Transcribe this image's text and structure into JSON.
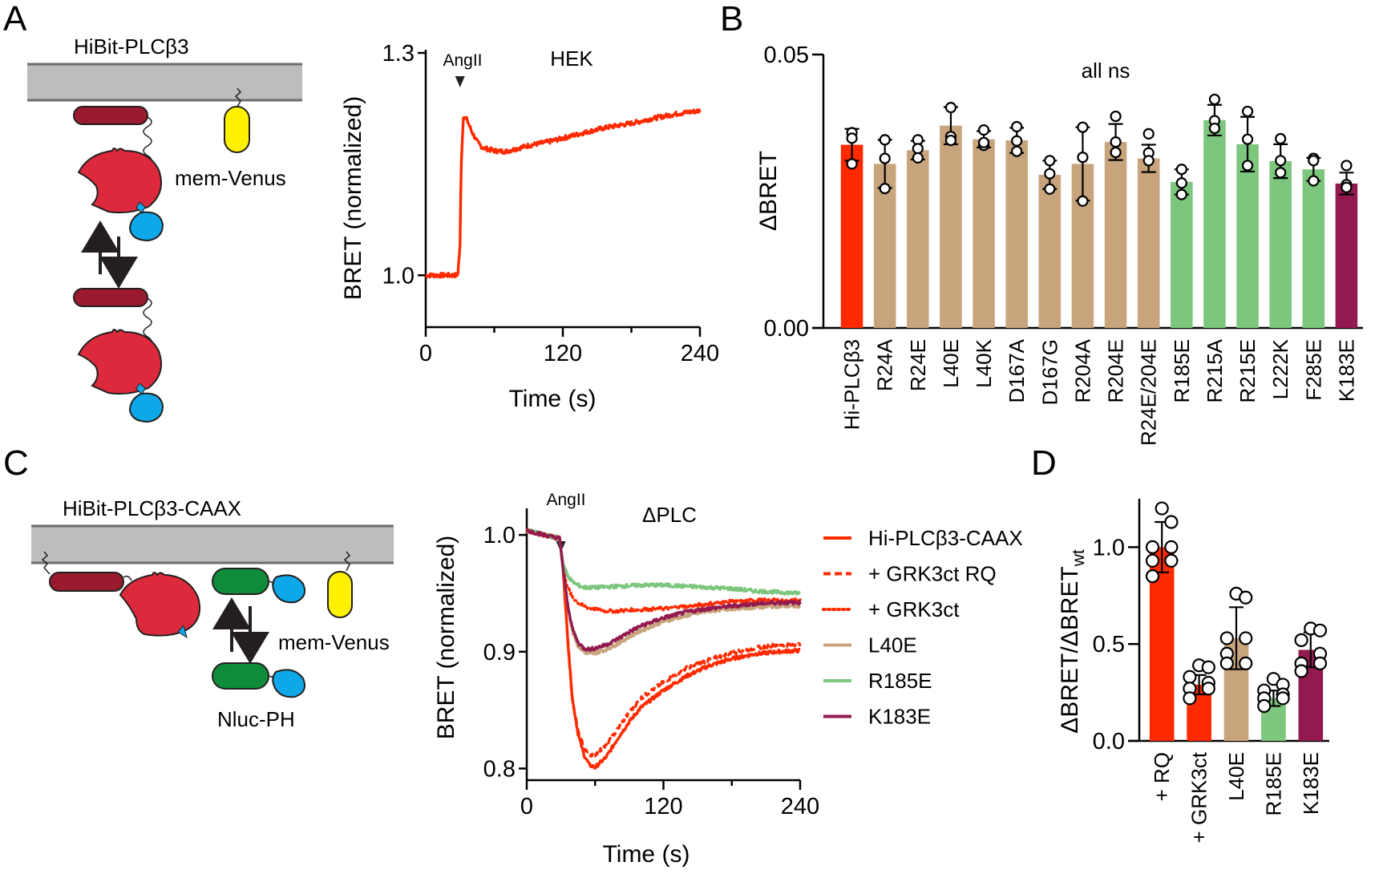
{
  "panels": {
    "A": {
      "letter": "A",
      "diagram": {
        "construct_label": "HiBit-PLCβ3",
        "membrane_marker_label": "mem-Venus"
      },
      "chart": {
        "annotation_stimulus": "AngII",
        "annotation_cell": "HEK"
      }
    },
    "B": {
      "letter": "B",
      "annotation": "all ns"
    },
    "C": {
      "letter": "C",
      "diagram": {
        "construct_label": "HiBit-PLCβ3-CAAX",
        "membrane_marker_label": "mem-Venus",
        "sensor_label": "Nluc-PH"
      },
      "chart": {
        "annotation_stimulus": "AngII",
        "annotation_condition": "ΔPLC"
      }
    },
    "D": {
      "letter": "D"
    }
  },
  "colors": {
    "wt_red": "#ff2a00",
    "tan": "#c8a47c",
    "green": "#7dc67d",
    "purple": "#931a4f",
    "membrane": "#bdbdbd",
    "membrane_edge": "#6d6d6d",
    "plc_body": "#dc2a3c",
    "plc_linker": "#9b1b2e",
    "nluc": "#0ea7e8",
    "venus": "#fff200",
    "ph_green": "#0f8c3a"
  },
  "chart_data": [
    {
      "id": "A-trace",
      "type": "line",
      "title": "HEK",
      "xlabel": "Time (s)",
      "ylabel": "BRET (normalized)",
      "xlim": [
        0,
        240
      ],
      "ylim": [
        0.93,
        1.3
      ],
      "xticks": [
        0,
        120,
        240
      ],
      "xticks_minor": [
        60,
        180
      ],
      "yticks": [
        1.0,
        1.3
      ],
      "ytick_labels": [
        "1.0",
        "1.3"
      ],
      "annotations": [
        {
          "text": "AngII",
          "x": 30,
          "marker": "down-triangle"
        }
      ],
      "series": [
        {
          "name": "HiBit-PLCβ3",
          "color": "#ff2a00",
          "style": "solid",
          "x": [
            0,
            10,
            20,
            28,
            30,
            31,
            33,
            36,
            40,
            45,
            50,
            60,
            70,
            80,
            90,
            100,
            110,
            120,
            140,
            160,
            180,
            200,
            220,
            240
          ],
          "y": [
            1.0,
            1.0,
            1.0,
            1.0,
            1.04,
            1.15,
            1.215,
            1.21,
            1.195,
            1.18,
            1.172,
            1.168,
            1.167,
            1.171,
            1.175,
            1.178,
            1.181,
            1.185,
            1.193,
            1.2,
            1.205,
            1.212,
            1.218,
            1.222
          ]
        }
      ]
    },
    {
      "id": "B-bars",
      "type": "bar",
      "ylabel": "ΔBRET",
      "ylim": [
        0,
        0.05
      ],
      "yticks": [
        0,
        0.05
      ],
      "ytick_labels": [
        "0.00",
        "0.05"
      ],
      "annotation": "all ns",
      "categories": [
        "Hi-PLCβ3",
        "R24A",
        "R24E",
        "L40E",
        "L40K",
        "D167A",
        "D167G",
        "R204A",
        "R204E",
        "R24E/204E",
        "R185E",
        "R215A",
        "R215E",
        "L222K",
        "F285E",
        "K183E"
      ],
      "values": [
        0.0335,
        0.03,
        0.0325,
        0.037,
        0.0345,
        0.0343,
        0.028,
        0.03,
        0.034,
        0.031,
        0.0267,
        0.038,
        0.0336,
        0.0305,
        0.029,
        0.0264
      ],
      "bar_colors": [
        "wt_red",
        "tan",
        "tan",
        "tan",
        "tan",
        "tan",
        "tan",
        "tan",
        "tan",
        "tan",
        "green",
        "green",
        "green",
        "green",
        "green",
        "purple"
      ],
      "points": [
        [
          0.0357,
          0.0347,
          0.03
        ],
        [
          0.0344,
          0.031,
          0.0255
        ],
        [
          0.0344,
          0.0328,
          0.0311
        ],
        [
          0.0403,
          0.035,
          0.0343
        ],
        [
          0.0362,
          0.0334,
          0.0339
        ],
        [
          0.0368,
          0.0342,
          0.0323
        ],
        [
          0.0306,
          0.0282,
          0.0254
        ],
        [
          0.0367,
          0.0312,
          0.0232
        ],
        [
          0.0387,
          0.034,
          0.0321
        ],
        [
          0.0355,
          0.032,
          0.0306
        ],
        [
          0.029,
          0.0265,
          0.0244
        ],
        [
          0.0418,
          0.0379,
          0.0365
        ],
        [
          0.0396,
          0.0345,
          0.0297
        ],
        [
          0.0346,
          0.0306,
          0.0284
        ],
        [
          0.031,
          0.0306,
          0.0269
        ],
        [
          0.0297,
          0.0262,
          0.0257
        ]
      ],
      "errors": [
        0.0029,
        0.0044,
        0.0017,
        0.0034,
        0.0015,
        0.0023,
        0.0026,
        0.0067,
        0.0033,
        0.0025,
        0.0023,
        0.0028,
        0.005,
        0.0031,
        0.0021,
        0.002
      ]
    },
    {
      "id": "C-traces",
      "type": "line",
      "title": "ΔPLC",
      "xlabel": "Time (s)",
      "ylabel": "BRET (normalized)",
      "xlim": [
        0,
        240
      ],
      "ylim": [
        0.79,
        1.02
      ],
      "xticks": [
        0,
        120,
        240
      ],
      "xticks_minor": [
        60,
        180
      ],
      "yticks": [
        0.8,
        0.9,
        1.0
      ],
      "ytick_labels": [
        "0.8",
        "0.9",
        "1.0"
      ],
      "annotations": [
        {
          "text": "AngII",
          "x": 30,
          "marker": "down-triangle"
        }
      ],
      "legend_position": "right",
      "series": [
        {
          "name": "Hi-PLCβ3-CAAX",
          "color": "#ff2a00",
          "style": "solid",
          "x": [
            0,
            15,
            29,
            32,
            36,
            40,
            45,
            50,
            55,
            60,
            70,
            80,
            90,
            100,
            120,
            140,
            160,
            180,
            200,
            220,
            240
          ],
          "y": [
            1.004,
            1.0,
            0.997,
            0.97,
            0.91,
            0.86,
            0.83,
            0.812,
            0.803,
            0.801,
            0.81,
            0.826,
            0.84,
            0.852,
            0.867,
            0.879,
            0.888,
            0.894,
            0.898,
            0.9,
            0.901
          ]
        },
        {
          "name": "+ GRK3ct RQ",
          "color": "#ff2a00",
          "style": "dashed",
          "x": [
            0,
            15,
            29,
            32,
            36,
            40,
            45,
            50,
            55,
            60,
            70,
            80,
            90,
            100,
            120,
            140,
            160,
            180,
            200,
            220,
            240
          ],
          "y": [
            1.004,
            1.0,
            0.997,
            0.97,
            0.91,
            0.86,
            0.832,
            0.818,
            0.812,
            0.812,
            0.82,
            0.834,
            0.848,
            0.86,
            0.874,
            0.886,
            0.893,
            0.899,
            0.903,
            0.906,
            0.906
          ]
        },
        {
          "name": "+ GRK3ct",
          "color": "#ff2a00",
          "style": "dotted",
          "x": [
            0,
            15,
            29,
            32,
            36,
            40,
            45,
            50,
            60,
            70,
            80,
            100,
            120,
            140,
            160,
            180,
            200,
            220,
            240
          ],
          "y": [
            1.004,
            1.0,
            0.997,
            0.97,
            0.955,
            0.947,
            0.942,
            0.939,
            0.936,
            0.935,
            0.935,
            0.936,
            0.937,
            0.939,
            0.941,
            0.943,
            0.944,
            0.944,
            0.944
          ]
        },
        {
          "name": "L40E",
          "color": "#c8a47c",
          "style": "solid",
          "x": [
            0,
            15,
            29,
            32,
            36,
            40,
            45,
            50,
            55,
            60,
            70,
            80,
            90,
            100,
            120,
            140,
            160,
            180,
            200,
            220,
            240
          ],
          "y": [
            1.004,
            1.0,
            0.997,
            0.97,
            0.94,
            0.918,
            0.905,
            0.9,
            0.898,
            0.899,
            0.902,
            0.907,
            0.913,
            0.918,
            0.926,
            0.931,
            0.935,
            0.937,
            0.938,
            0.939,
            0.939
          ]
        },
        {
          "name": "R185E",
          "color": "#7dc67d",
          "style": "solid",
          "x": [
            0,
            15,
            29,
            32,
            36,
            40,
            45,
            50,
            60,
            80,
            100,
            120,
            140,
            160,
            180,
            200,
            220,
            240
          ],
          "y": [
            1.004,
            1.0,
            0.997,
            0.975,
            0.965,
            0.96,
            0.957,
            0.955,
            0.955,
            0.956,
            0.957,
            0.957,
            0.956,
            0.955,
            0.954,
            0.952,
            0.951,
            0.95
          ]
        },
        {
          "name": "K183E",
          "color": "#931a4f",
          "style": "solid",
          "x": [
            0,
            15,
            29,
            32,
            36,
            40,
            45,
            50,
            55,
            60,
            70,
            80,
            90,
            100,
            120,
            140,
            160,
            180,
            200,
            220,
            240
          ],
          "y": [
            1.004,
            1.0,
            0.997,
            0.97,
            0.94,
            0.92,
            0.908,
            0.903,
            0.902,
            0.903,
            0.906,
            0.911,
            0.917,
            0.922,
            0.929,
            0.934,
            0.937,
            0.939,
            0.941,
            0.942,
            0.942
          ]
        }
      ]
    },
    {
      "id": "D-bars",
      "type": "bar",
      "ylabel": "ΔBRET/ΔBRET",
      "ylabel_subscript": "wt",
      "ylim": [
        0,
        1.25
      ],
      "yticks": [
        0,
        0.5,
        1.0
      ],
      "ytick_labels": [
        "0.0",
        "0.5",
        "1.0"
      ],
      "categories": [
        "+ RQ",
        "+ GRK3ct",
        "L40E",
        "R185E",
        "K183E"
      ],
      "values": [
        1.0,
        0.29,
        0.53,
        0.22,
        0.47
      ],
      "bar_colors": [
        "wt_red",
        "wt_red",
        "tan",
        "green",
        "purple"
      ],
      "errors": [
        0.13,
        0.05,
        0.16,
        0.04,
        0.09
      ],
      "points": [
        [
          1.2,
          1.13,
          1.0,
          1.0,
          0.93,
          0.93,
          0.85
        ],
        [
          0.39,
          0.38,
          0.33,
          0.3,
          0.27,
          0.27,
          0.22
        ],
        [
          0.76,
          0.74,
          0.53,
          0.53,
          0.45,
          0.4,
          0.4
        ],
        [
          0.32,
          0.29,
          0.26,
          0.24,
          0.22,
          0.22,
          0.18
        ],
        [
          0.58,
          0.57,
          0.52,
          0.45,
          0.4,
          0.4,
          0.36
        ]
      ]
    }
  ]
}
